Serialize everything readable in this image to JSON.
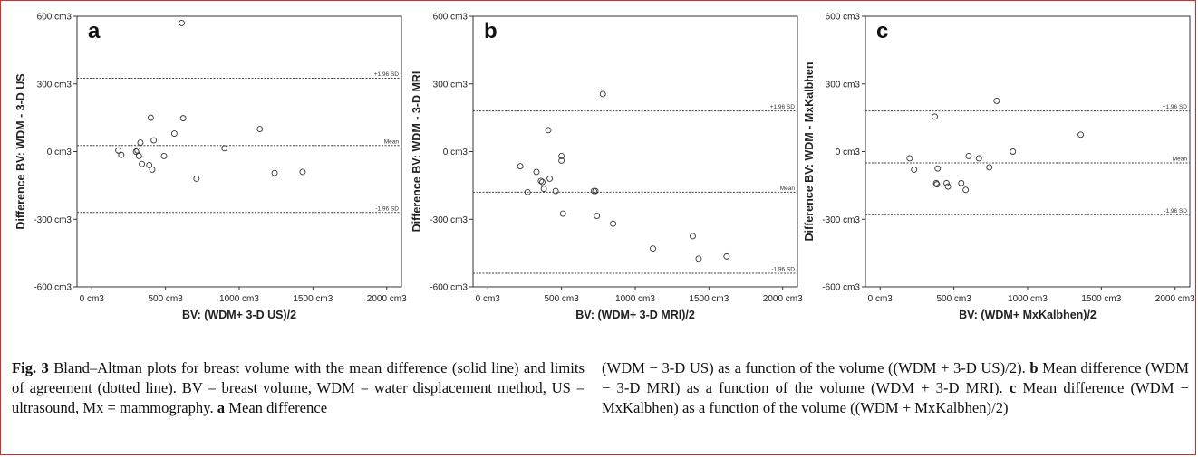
{
  "chart_data": [
    {
      "type": "scatter",
      "panel_label": "a",
      "ylabel": "Difference BV: WDM - 3-D US",
      "xlabel": "BV: (WDM+ 3-D US)/2",
      "x_ticks": [
        "0 cm3",
        "500 cm3",
        "1000 cm3",
        "1500 cm3",
        "2000 cm3"
      ],
      "y_ticks": [
        "-600 cm3",
        "-300 cm3",
        "0 cm3",
        "300 cm3",
        "600 cm3"
      ],
      "xlim": [
        -100,
        2100
      ],
      "ylim": [
        -600,
        600
      ],
      "reference_lines": [
        {
          "label": "+1.96 SD",
          "value": 325
        },
        {
          "label": "Mean",
          "value": 27
        },
        {
          "label": "-1.96 SD",
          "value": -270
        }
      ],
      "points": [
        {
          "x": 180,
          "y": 5
        },
        {
          "x": 200,
          "y": -15
        },
        {
          "x": 300,
          "y": 0
        },
        {
          "x": 310,
          "y": 5
        },
        {
          "x": 320,
          "y": -20
        },
        {
          "x": 330,
          "y": 40
        },
        {
          "x": 340,
          "y": -55
        },
        {
          "x": 390,
          "y": -60
        },
        {
          "x": 410,
          "y": -80
        },
        {
          "x": 420,
          "y": 50
        },
        {
          "x": 400,
          "y": 150
        },
        {
          "x": 490,
          "y": -20
        },
        {
          "x": 560,
          "y": 80
        },
        {
          "x": 610,
          "y": 570
        },
        {
          "x": 620,
          "y": 148
        },
        {
          "x": 710,
          "y": -120
        },
        {
          "x": 900,
          "y": 15
        },
        {
          "x": 1140,
          "y": 100
        },
        {
          "x": 1240,
          "y": -95
        },
        {
          "x": 1430,
          "y": -90
        }
      ]
    },
    {
      "type": "scatter",
      "panel_label": "b",
      "ylabel": "Difference BV: WDM - 3-D MRI",
      "xlabel": "BV: (WDM+ 3-D MRI)/2",
      "x_ticks": [
        "0 cm3",
        "500 cm3",
        "1000 cm3",
        "1500 cm3",
        "2000 cm3"
      ],
      "y_ticks": [
        "-600 cm3",
        "-300 cm3",
        "0 cm3",
        "300 cm3",
        "600 cm3"
      ],
      "xlim": [
        -100,
        2100
      ],
      "ylim": [
        -600,
        600
      ],
      "reference_lines": [
        {
          "label": "+1.96 SD",
          "value": 180
        },
        {
          "label": "Mean",
          "value": -180
        },
        {
          "label": "-1.96 SD",
          "value": -540
        }
      ],
      "points": [
        {
          "x": 220,
          "y": -65
        },
        {
          "x": 270,
          "y": -180
        },
        {
          "x": 330,
          "y": -90
        },
        {
          "x": 360,
          "y": -130
        },
        {
          "x": 370,
          "y": -135
        },
        {
          "x": 380,
          "y": -165
        },
        {
          "x": 410,
          "y": 95
        },
        {
          "x": 420,
          "y": -120
        },
        {
          "x": 460,
          "y": -175
        },
        {
          "x": 500,
          "y": -20
        },
        {
          "x": 500,
          "y": -40
        },
        {
          "x": 510,
          "y": -275
        },
        {
          "x": 720,
          "y": -175
        },
        {
          "x": 730,
          "y": -175
        },
        {
          "x": 740,
          "y": -285
        },
        {
          "x": 780,
          "y": 255
        },
        {
          "x": 850,
          "y": -320
        },
        {
          "x": 1120,
          "y": -430
        },
        {
          "x": 1390,
          "y": -375
        },
        {
          "x": 1430,
          "y": -475
        },
        {
          "x": 1620,
          "y": -465
        }
      ]
    },
    {
      "type": "scatter",
      "panel_label": "c",
      "ylabel": "Difference BV: WDM - MxKalbhen",
      "xlabel": "BV: (WDM+ MxKalbhen)/2",
      "x_ticks": [
        "0 cm3",
        "500 cm3",
        "1000 cm3",
        "1500 cm3",
        "2000 cm3"
      ],
      "y_ticks": [
        "-600 cm3",
        "-300 cm3",
        "0 cm3",
        "300 cm3",
        "600 cm3"
      ],
      "xlim": [
        -100,
        2100
      ],
      "ylim": [
        -600,
        600
      ],
      "reference_lines": [
        {
          "label": "+1.96 SD",
          "value": 180
        },
        {
          "label": "Mean",
          "value": -50
        },
        {
          "label": "-1.96 SD",
          "value": -280
        }
      ],
      "points": [
        {
          "x": 200,
          "y": -30
        },
        {
          "x": 230,
          "y": -80
        },
        {
          "x": 370,
          "y": 155
        },
        {
          "x": 380,
          "y": -140
        },
        {
          "x": 385,
          "y": -145
        },
        {
          "x": 390,
          "y": -75
        },
        {
          "x": 450,
          "y": -140
        },
        {
          "x": 460,
          "y": -155
        },
        {
          "x": 550,
          "y": -140
        },
        {
          "x": 580,
          "y": -170
        },
        {
          "x": 600,
          "y": -20
        },
        {
          "x": 670,
          "y": -30
        },
        {
          "x": 740,
          "y": -70
        },
        {
          "x": 790,
          "y": 225
        },
        {
          "x": 900,
          "y": 0
        },
        {
          "x": 1360,
          "y": 75
        }
      ]
    }
  ],
  "caption": {
    "left": [
      {
        "bold": true,
        "text": "Fig. 3"
      },
      {
        "bold": false,
        "text": " Bland–Altman plots for breast volume with the mean difference (solid line) and limits of agreement (dotted line). BV = breast volume, WDM = water displacement method, US = ultrasound, Mx = mammography. "
      },
      {
        "bold": true,
        "text": "a"
      },
      {
        "bold": false,
        "text": " Mean difference"
      }
    ],
    "right": [
      {
        "bold": false,
        "text": "(WDM − 3-D US) as a function of the volume ((WDM + 3-D US)/2). "
      },
      {
        "bold": true,
        "text": "b"
      },
      {
        "bold": false,
        "text": " Mean difference (WDM − 3-D MRI) as a function of the volume (WDM + 3-D MRI). "
      },
      {
        "bold": true,
        "text": "c"
      },
      {
        "bold": false,
        "text": " Mean difference (WDM − MxKalbhen) as a function of the volume ((WDM + MxKalbhen)/2)"
      }
    ]
  }
}
